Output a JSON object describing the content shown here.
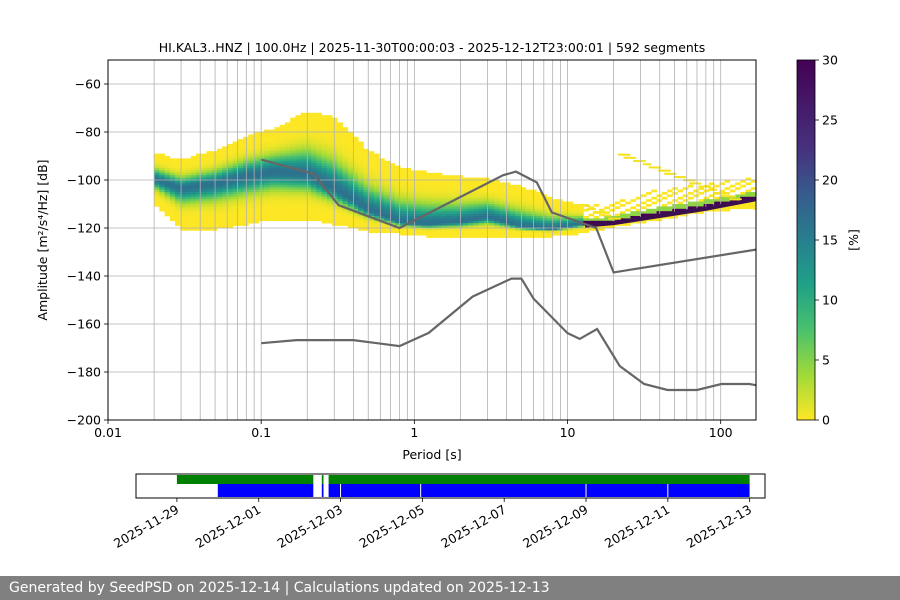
{
  "footer": {
    "text": "Generated by SeedPSD on 2025-12-14 | Calculations updated on 2025-12-13"
  },
  "colors": {
    "grid": "#b0b0b0",
    "noise_model": "#666666",
    "mode_line": "#3b0f4f",
    "availability_channel": "#008000",
    "availability_segments": "#0000ff"
  },
  "chart_data": [
    {
      "type": "heatmap",
      "title": "HI.KAL3..HNZ | 100.0Hz | 2025-11-30T00:00:03 - 2025-12-12T23:00:01 | 592 segments",
      "xlabel": "Period [s]",
      "ylabel": "Amplitude [m²/s⁴/Hz] [dB]",
      "x_scale": "log",
      "xlim": [
        0.01,
        170
      ],
      "ylim": [
        -200,
        -50
      ],
      "grid": true,
      "x_ticks": [
        0.01,
        0.1,
        1,
        10,
        100
      ],
      "x_tick_labels": [
        "0.01",
        "0.1",
        "1",
        "10",
        "100"
      ],
      "y_ticks": [
        -200,
        -180,
        -160,
        -140,
        -120,
        -100,
        -80,
        -60
      ],
      "y_tick_labels": [
        "−200",
        "−180",
        "−160",
        "−140",
        "−120",
        "−100",
        "−80",
        "−60"
      ],
      "colorbar": {
        "colormap": "viridis_r",
        "range": [
          0,
          30
        ],
        "ticks": [
          0,
          5,
          10,
          15,
          20,
          25,
          30
        ],
        "tick_labels": [
          "0",
          "5",
          "10",
          "15",
          "20",
          "25",
          "30"
        ],
        "label": "[%]"
      },
      "density_bands": [
        {
          "period": 0.02,
          "median_db": -100,
          "low_db": -110,
          "high_db": -89
        },
        {
          "period": 0.03,
          "median_db": -104,
          "low_db": -120,
          "high_db": -92
        },
        {
          "period": 0.05,
          "median_db": -102,
          "low_db": -120,
          "high_db": -88
        },
        {
          "period": 0.08,
          "median_db": -99,
          "low_db": -118,
          "high_db": -82
        },
        {
          "period": 0.12,
          "median_db": -97,
          "low_db": -116,
          "high_db": -79
        },
        {
          "period": 0.2,
          "median_db": -98,
          "low_db": -116,
          "high_db": -72
        },
        {
          "period": 0.3,
          "median_db": -104,
          "low_db": -118,
          "high_db": -74
        },
        {
          "period": 0.5,
          "median_db": -113,
          "low_db": -121,
          "high_db": -88
        },
        {
          "period": 0.8,
          "median_db": -118,
          "low_db": -122,
          "high_db": -95
        },
        {
          "period": 1.2,
          "median_db": -119,
          "low_db": -123,
          "high_db": -97
        },
        {
          "period": 2,
          "median_db": -118,
          "low_db": -123,
          "high_db": -99
        },
        {
          "period": 3,
          "median_db": -116,
          "low_db": -123,
          "high_db": -100
        },
        {
          "period": 5,
          "median_db": -120,
          "low_db": -123,
          "high_db": -103
        },
        {
          "period": 8,
          "median_db": -121,
          "low_db": -123,
          "high_db": -108
        },
        {
          "period": 12,
          "median_db": -119,
          "low_db": -122,
          "high_db": -111
        },
        {
          "period": 20,
          "median_db": -117,
          "low_db": -119,
          "high_db": -110
        },
        {
          "period": 40,
          "median_db": -114,
          "low_db": -116,
          "high_db": -104
        },
        {
          "period": 80,
          "median_db": -111,
          "low_db": -113,
          "high_db": -102
        },
        {
          "period": 170,
          "median_db": -108,
          "low_db": -111,
          "high_db": -99
        }
      ],
      "scatter_band": {
        "period_range": [
          13,
          170
        ],
        "low_db": -116,
        "high_db": -88
      },
      "mode_line": [
        [
          13,
          -119
        ],
        [
          20,
          -118
        ],
        [
          40,
          -115
        ],
        [
          80,
          -112
        ],
        [
          170,
          -108
        ]
      ],
      "series": [
        {
          "style": "noise-model-high",
          "points": [
            [
              0.1,
              -91.5
            ],
            [
              0.22,
              -97.4
            ],
            [
              0.32,
              -110.5
            ],
            [
              0.8,
              -120
            ],
            [
              3.8,
              -98
            ],
            [
              4.6,
              -96.5
            ],
            [
              6.3,
              -101
            ],
            [
              7.9,
              -113.5
            ],
            [
              15.4,
              -120
            ],
            [
              20,
              -138.5
            ],
            [
              170,
              -129
            ]
          ]
        },
        {
          "style": "noise-model-low",
          "points": [
            [
              0.1,
              -168
            ],
            [
              0.17,
              -166.7
            ],
            [
              0.4,
              -166.7
            ],
            [
              0.8,
              -169.2
            ],
            [
              1.24,
              -163.7
            ],
            [
              2.4,
              -148.6
            ],
            [
              4.3,
              -141.1
            ],
            [
              5.0,
              -141.1
            ],
            [
              6.0,
              -149.4
            ],
            [
              10.0,
              -163.8
            ],
            [
              12.0,
              -166.2
            ],
            [
              15.6,
              -162.1
            ],
            [
              21.9,
              -177.5
            ],
            [
              31.6,
              -185.0
            ],
            [
              45.0,
              -187.5
            ],
            [
              70.0,
              -187.5
            ],
            [
              101.0,
              -185.0
            ],
            [
              154.0,
              -185.0
            ],
            [
              170.0,
              -185.5
            ]
          ]
        }
      ]
    },
    {
      "type": "availability",
      "x_start": "2025-11-28",
      "x_end": "2025-12-13T09:00",
      "x_tick_labels": [
        "2025-11-29",
        "2025-12-01",
        "2025-12-03",
        "2025-12-05",
        "2025-12-07",
        "2025-12-09",
        "2025-12-11",
        "2025-12-13"
      ],
      "x_ticks": [
        "2025-11-29",
        "2025-12-01",
        "2025-12-03",
        "2025-12-05",
        "2025-12-07",
        "2025-12-09",
        "2025-12-11",
        "2025-12-13"
      ],
      "channel_intervals": [
        [
          "2025-11-29T00:00",
          "2025-12-02T08:00"
        ],
        [
          "2025-12-02T13:00",
          "2025-12-02T14:00"
        ],
        [
          "2025-12-02T17:00",
          "2025-12-13T00:00"
        ]
      ],
      "segment_intervals": [
        [
          "2025-11-30T00:00",
          "2025-12-02T08:00"
        ],
        [
          "2025-12-02T13:00",
          "2025-12-02T14:00"
        ],
        [
          "2025-12-02T17:00",
          "2025-12-13T00:00"
        ]
      ],
      "segment_breaks": [
        "2025-12-03T00:00",
        "2025-12-04T23:00",
        "2025-12-09T00:00",
        "2025-12-11T00:00"
      ]
    }
  ]
}
